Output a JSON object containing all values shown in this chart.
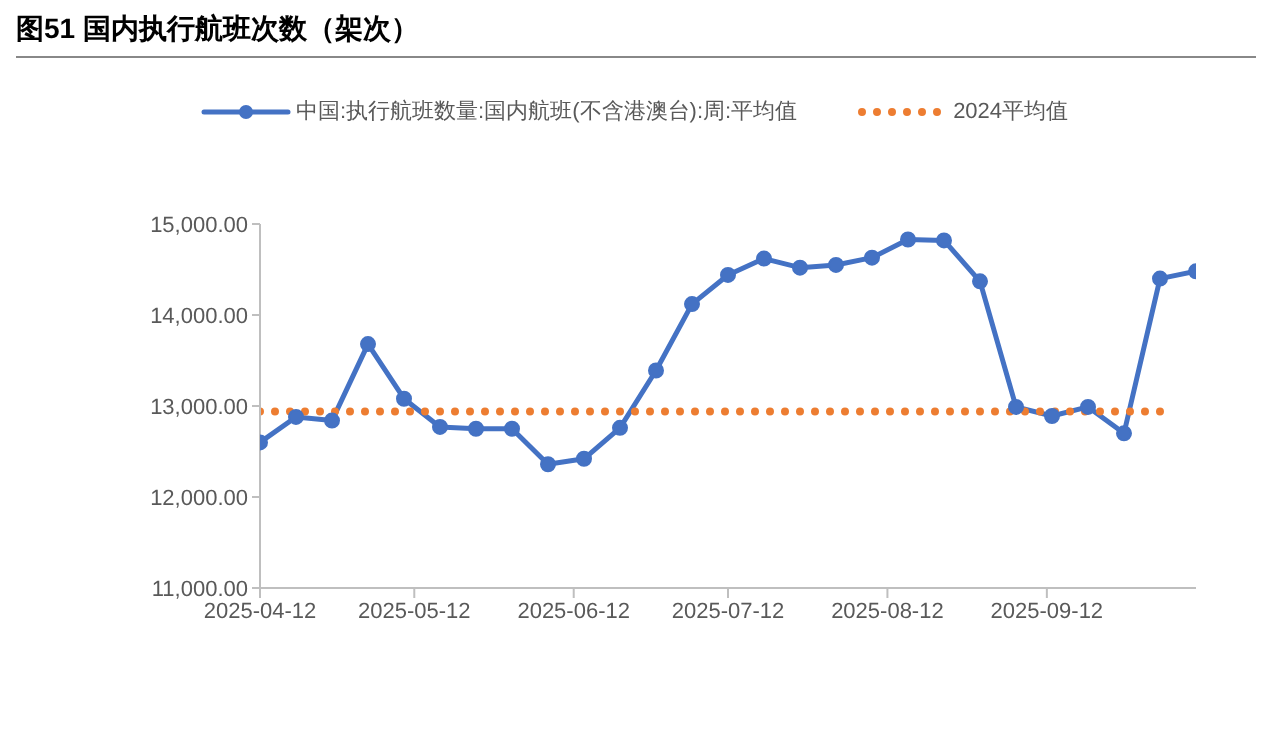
{
  "chart_data": {
    "type": "line",
    "title": "图51 国内执行航班次数（架次）",
    "x": [
      "2025-04-12",
      "2025-04-19",
      "2025-04-26",
      "2025-05-03",
      "2025-05-10",
      "2025-05-17",
      "2025-05-24",
      "2025-05-31",
      "2025-06-07",
      "2025-06-14",
      "2025-06-21",
      "2025-06-28",
      "2025-07-05",
      "2025-07-12",
      "2025-07-19",
      "2025-07-26",
      "2025-08-02",
      "2025-08-09",
      "2025-08-16",
      "2025-08-23",
      "2025-08-30",
      "2025-09-06",
      "2025-09-13",
      "2025-09-20",
      "2025-09-27",
      "2025-10-04",
      "2025-10-11"
    ],
    "series": [
      {
        "name": "中国:执行航班数量:国内航班(不含港澳台):周:平均值",
        "color": "#4472c4",
        "marker": "circle",
        "line_style": "solid",
        "values": [
          12600,
          12880,
          12840,
          13680,
          13080,
          12770,
          12750,
          12750,
          12360,
          12420,
          12760,
          13390,
          14120,
          14440,
          14620,
          14520,
          14550,
          14630,
          14830,
          14820,
          14370,
          12990,
          12890,
          12990,
          12700,
          14400,
          14480
        ]
      },
      {
        "name": "2024平均值",
        "color": "#ed7d31",
        "marker": "none",
        "line_style": "dotted",
        "values": [
          12940,
          12940,
          12940,
          12940,
          12940,
          12940,
          12940,
          12940,
          12940,
          12940,
          12940,
          12940,
          12940,
          12940,
          12940,
          12940,
          12940,
          12940,
          12940,
          12940,
          12940,
          12940,
          12940,
          12940,
          12940,
          12940,
          null
        ]
      }
    ],
    "xlim": [
      "2025-04-12",
      "2025-10-11"
    ],
    "xticks": [
      "2025-04-12",
      "2025-05-12",
      "2025-06-12",
      "2025-07-12",
      "2025-08-12",
      "2025-09-12"
    ],
    "ylim": [
      11000,
      15000
    ],
    "yticks": [
      {
        "value": 11000,
        "label": "11,000.00"
      },
      {
        "value": 12000,
        "label": "12,000.00"
      },
      {
        "value": 13000,
        "label": "13,000.00"
      },
      {
        "value": 14000,
        "label": "14,000.00"
      },
      {
        "value": 15000,
        "label": "15,000.00"
      }
    ],
    "grid": false,
    "legend": "top"
  }
}
